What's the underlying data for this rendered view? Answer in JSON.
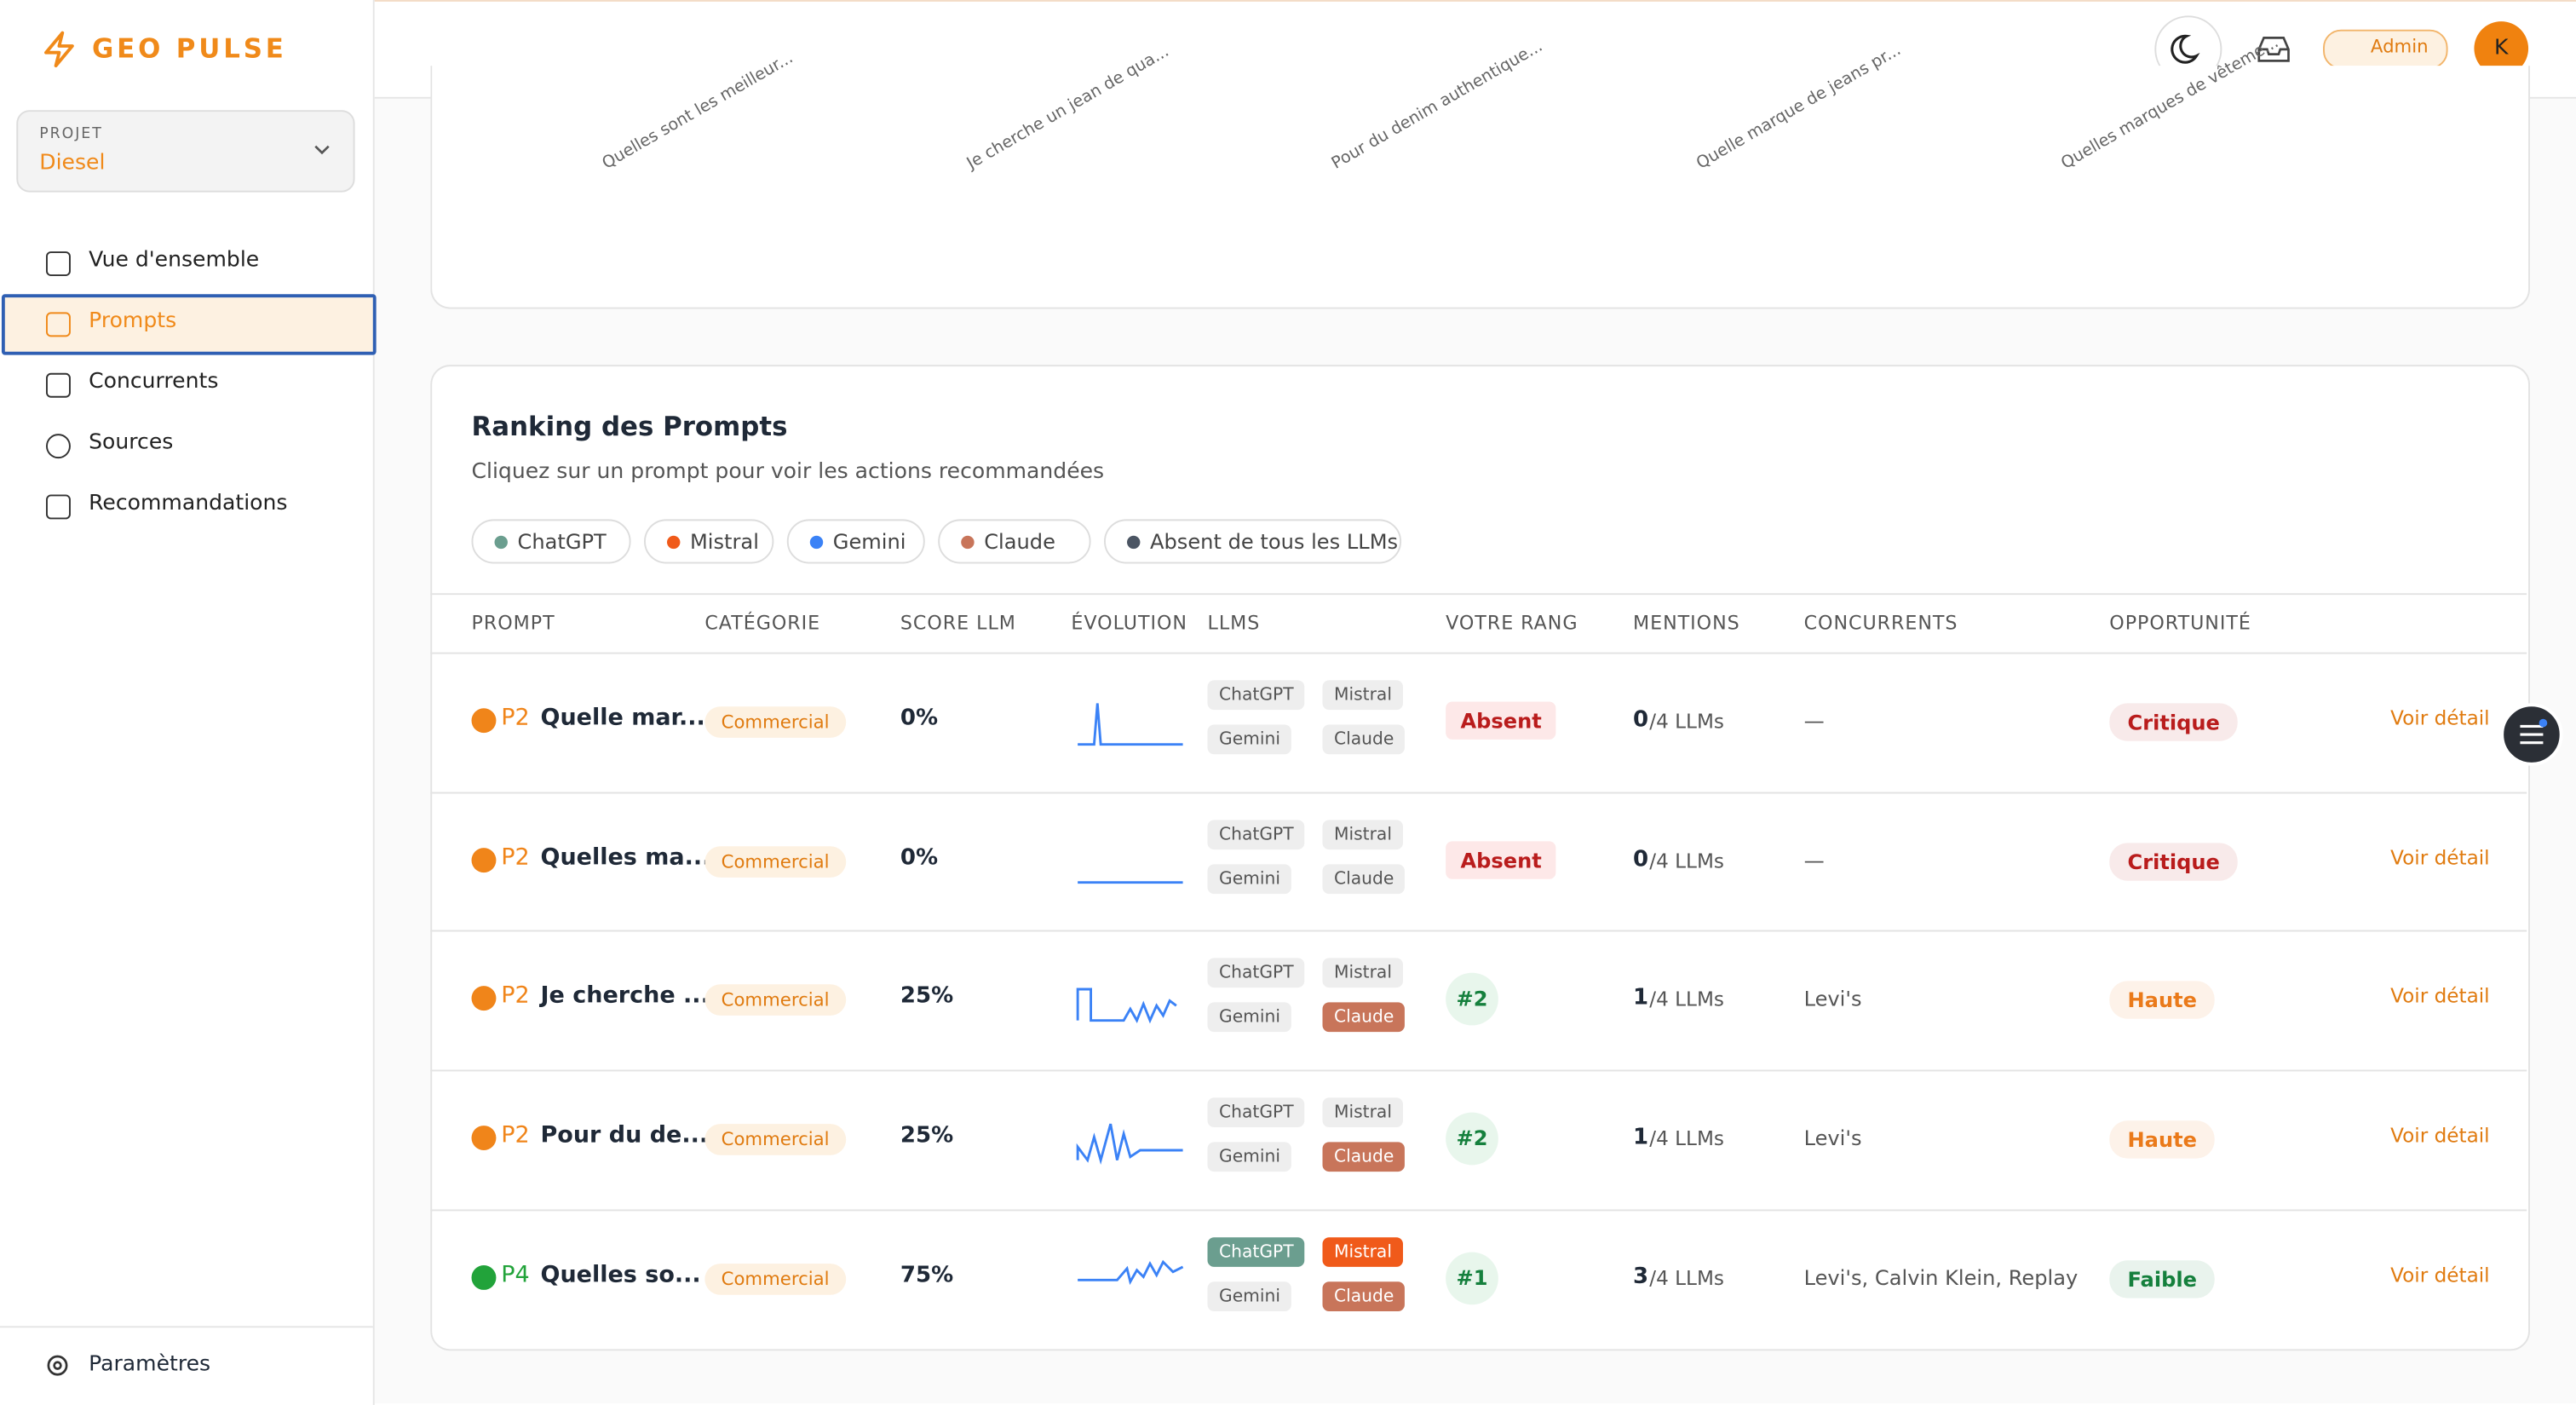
{
  "sidebar": {
    "logo": "GEO PULSE",
    "project_label": "PROJET",
    "project": "Diesel",
    "nav": [
      "Vue d'ensemble",
      "Prompts",
      "Concurrents",
      "Sources",
      "Recommandations"
    ],
    "active": 1,
    "settings": "Paramètres"
  },
  "topbar": {
    "role": "Admin",
    "avatar": "K"
  },
  "chart_labels": [
    "Quelles sont les meilleur...",
    "Je cherche un jean de qua...",
    "Pour du denim authentique...",
    "Quelle marque de jeans pr...",
    "Quelles marques de vêteme..."
  ],
  "ranking": {
    "title": "Ranking des Prompts",
    "subtitle": "Cliquez sur un prompt pour voir les actions recommandées",
    "filters": [
      {
        "name": "ChatGPT",
        "color": "#6b9e8f"
      },
      {
        "name": "Mistral",
        "color": "#f05a1a"
      },
      {
        "name": "Gemini",
        "color": "#3b82f6"
      },
      {
        "name": "Claude",
        "color": "#c8755a"
      },
      {
        "name": "Absent de tous les LLMs",
        "color": "#4b5563"
      }
    ],
    "headers": [
      "PROMPT",
      "CATÉGORIE",
      "SCORE LLM",
      "ÉVOLUTION",
      "LLMS",
      "VOTRE RANG",
      "MENTIONS",
      "CONCURRENTS",
      "OPPORTUNITÉ"
    ],
    "rows": [
      {
        "priority": "P2",
        "dot_color": "#f0851a",
        "prompt": "Quelle mar...",
        "category": "Commercial",
        "score": "0%",
        "llms": [
          {
            "name": "ChatGPT",
            "active": false
          },
          {
            "name": "Mistral",
            "active": false
          },
          {
            "name": "Gemini",
            "active": false
          },
          {
            "name": "Claude",
            "active": false
          }
        ],
        "rank": "Absent",
        "mentions": "0",
        "mentions_of": "/4 LLMs",
        "competitors": "—",
        "opportunity": "Critique",
        "opportunity_color": "#b91c1c",
        "action": "Voir détail"
      },
      {
        "priority": "P2",
        "dot_color": "#f0851a",
        "prompt": "Quelles ma...",
        "category": "Commercial",
        "score": "0%",
        "llms": [
          {
            "name": "ChatGPT",
            "active": false
          },
          {
            "name": "Mistral",
            "active": false
          },
          {
            "name": "Gemini",
            "active": false
          },
          {
            "name": "Claude",
            "active": false
          }
        ],
        "rank": "Absent",
        "mentions": "0",
        "mentions_of": "/4 LLMs",
        "competitors": "—",
        "opportunity": "Critique",
        "opportunity_color": "#b91c1c",
        "action": "Voir détail"
      },
      {
        "priority": "P2",
        "dot_color": "#f0851a",
        "prompt": "Je cherche ...",
        "category": "Commercial",
        "score": "25%",
        "llms": [
          {
            "name": "ChatGPT",
            "active": false
          },
          {
            "name": "Mistral",
            "active": false
          },
          {
            "name": "Gemini",
            "active": false
          },
          {
            "name": "Claude",
            "active": true
          }
        ],
        "rank": "#2",
        "mentions": "1",
        "mentions_of": "/4 LLMs",
        "competitors": "Levi's",
        "opportunity": "Haute",
        "opportunity_color": "#ea7a1a",
        "action": "Voir détail"
      },
      {
        "priority": "P2",
        "dot_color": "#f0851a",
        "prompt": "Pour du de...",
        "category": "Commercial",
        "score": "25%",
        "llms": [
          {
            "name": "ChatGPT",
            "active": false
          },
          {
            "name": "Mistral",
            "active": false
          },
          {
            "name": "Gemini",
            "active": false
          },
          {
            "name": "Claude",
            "active": true
          }
        ],
        "rank": "#2",
        "mentions": "1",
        "mentions_of": "/4 LLMs",
        "competitors": "Levi's",
        "opportunity": "Haute",
        "opportunity_color": "#ea7a1a",
        "action": "Voir détail"
      },
      {
        "priority": "P4",
        "dot_color": "#22a33a",
        "prompt": "Quelles so...",
        "category": "Commercial",
        "score": "75%",
        "llms": [
          {
            "name": "ChatGPT",
            "active": true
          },
          {
            "name": "Mistral",
            "active": true
          },
          {
            "name": "Gemini",
            "active": false
          },
          {
            "name": "Claude",
            "active": true
          }
        ],
        "rank": "#1",
        "mentions": "3",
        "mentions_of": "/4 LLMs",
        "competitors": "Levi's, Calvin Klein, Replay",
        "opportunity": "Faible",
        "opportunity_color": "#15803d",
        "action": "Voir détail"
      }
    ]
  }
}
